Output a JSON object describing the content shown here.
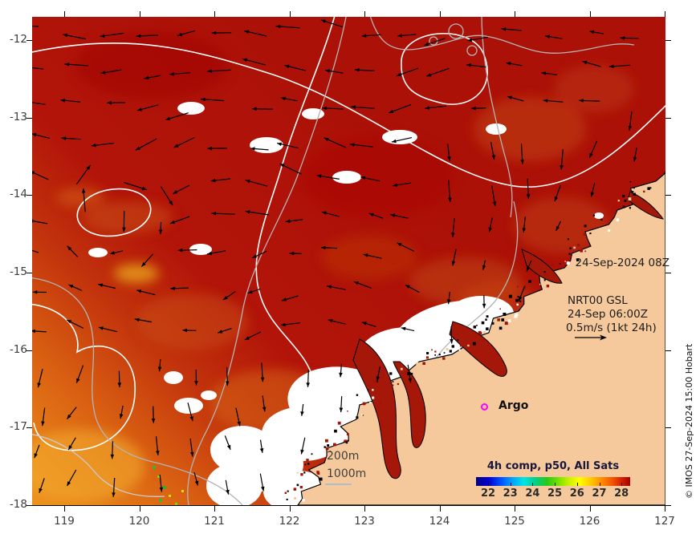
{
  "annotations": {
    "timestamp": "24-Sep-2024 08Z",
    "product": "NRT00 GSL",
    "product_time": "24-Sep 06:00Z",
    "velocity_scale": "0.5m/s (1kt 24h)",
    "argo_label": "Argo",
    "isobath_200": "200m",
    "isobath_1000": "1000m",
    "credit": "© IMOS 27-Sep-2024 15:00 Hobart"
  },
  "axes": {
    "x_ticks": [
      119,
      120,
      121,
      122,
      123,
      124,
      125,
      126,
      127
    ],
    "y_ticks": [
      -12,
      -13,
      -14,
      -15,
      -16,
      -17,
      -18
    ]
  },
  "colorbar": {
    "title": "4h comp, p50, All Sats",
    "ticks": [
      22,
      23,
      24,
      25,
      26,
      27,
      28
    ],
    "gradient": [
      "#000080 0%",
      "#0000d2 8%",
      "#0050ff 16%",
      "#00a8ff 24%",
      "#00e4e4 31%",
      "#00d090 38%",
      "#28c818 46%",
      "#7ce400 54%",
      "#c8f000 60%",
      "#ffff00 67%",
      "#ffc400 75%",
      "#ff8800 82%",
      "#f25000 89%",
      "#d21c00 95%",
      "#a30000 100%"
    ]
  },
  "colors": {
    "land": "#f5c99b",
    "ocean_hot": "#ae1207",
    "ocean_warm": "#e8861b",
    "cloud": "#ffffff",
    "argo_marker": "#ff00ff",
    "ssh_contour": "#ffffff",
    "isobath_contour": "#b4b4b4"
  },
  "chart_data": {
    "type": "heatmap",
    "variable": "sea surface temperature (°C)",
    "composite": "4h comp, p50, All Sats",
    "colorbar_ticks": [
      22,
      23,
      24,
      25,
      26,
      27,
      28
    ],
    "lon_range": [
      118.6,
      127.0
    ],
    "lat_range": [
      -18,
      -11.7
    ],
    "overlays": [
      "NRT00 GSL sea level contours (white) with geostrophic current arrows, scale 0.5m/s = 1kt 24h",
      "200m and 1000m isobaths (grey)",
      "Argo float location (magenta circle) near 124.6E 16.7S"
    ]
  }
}
